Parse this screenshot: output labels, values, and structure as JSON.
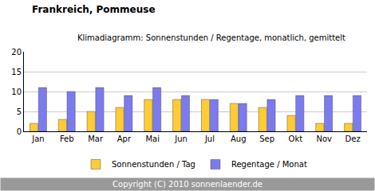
{
  "chart_data": {
    "type": "bar",
    "title": "Frankreich, Pommeuse",
    "subtitle": "Klimadiagramm: Sonnenstunden / Regentage, monatlich, gemittelt",
    "footer": "Copyright (C) 2010 sonnenlaender.de",
    "categories": [
      "Jan",
      "Feb",
      "Mar",
      "Apr",
      "Mai",
      "Jun",
      "Jul",
      "Aug",
      "Sep",
      "Okt",
      "Nov",
      "Dez"
    ],
    "series": [
      {
        "name": "Sonnenstunden / Tag",
        "color": "#ffcc33",
        "values": [
          2,
          3,
          5,
          6,
          8,
          8,
          8,
          7,
          6,
          4,
          2,
          2
        ]
      },
      {
        "name": "Regentage / Monat",
        "color": "#7b7bef",
        "values": [
          11,
          10,
          11,
          9,
          11,
          9,
          8,
          7,
          8,
          9,
          9,
          9
        ]
      }
    ],
    "ylim": [
      0,
      20
    ],
    "yticks": [
      0,
      5,
      10,
      15,
      20
    ],
    "grid": true,
    "legend": "bottom"
  }
}
